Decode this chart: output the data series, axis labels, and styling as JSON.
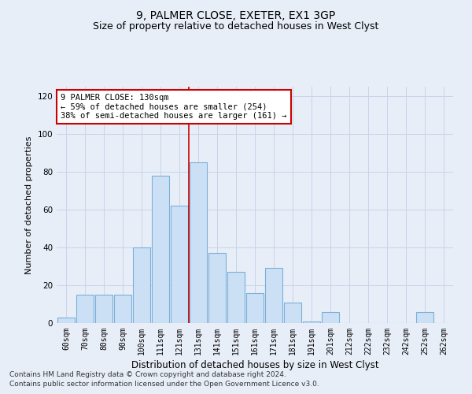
{
  "title": "9, PALMER CLOSE, EXETER, EX1 3GP",
  "subtitle": "Size of property relative to detached houses in West Clyst",
  "xlabel": "Distribution of detached houses by size in West Clyst",
  "ylabel": "Number of detached properties",
  "categories": [
    "60sqm",
    "70sqm",
    "80sqm",
    "90sqm",
    "100sqm",
    "111sqm",
    "121sqm",
    "131sqm",
    "141sqm",
    "151sqm",
    "161sqm",
    "171sqm",
    "181sqm",
    "191sqm",
    "201sqm",
    "212sqm",
    "222sqm",
    "232sqm",
    "242sqm",
    "252sqm",
    "262sqm"
  ],
  "values": [
    3,
    15,
    15,
    15,
    40,
    78,
    62,
    85,
    37,
    27,
    16,
    29,
    11,
    1,
    6,
    0,
    0,
    0,
    0,
    6,
    0
  ],
  "bar_color": "#cce0f5",
  "bar_edge_color": "#7ab0d8",
  "vline_index": 7,
  "vline_color": "#cc0000",
  "annotation_line1": "9 PALMER CLOSE: 130sqm",
  "annotation_line2": "← 59% of detached houses are smaller (254)",
  "annotation_line3": "38% of semi-detached houses are larger (161) →",
  "annotation_box_color": "#ffffff",
  "annotation_box_edge": "#cc0000",
  "ylim": [
    0,
    125
  ],
  "yticks": [
    0,
    20,
    40,
    60,
    80,
    100,
    120
  ],
  "grid_color": "#c8d4e8",
  "bg_color": "#e8eef8",
  "footer1": "Contains HM Land Registry data © Crown copyright and database right 2024.",
  "footer2": "Contains public sector information licensed under the Open Government Licence v3.0.",
  "title_fontsize": 10,
  "subtitle_fontsize": 9,
  "xlabel_fontsize": 8.5,
  "ylabel_fontsize": 8,
  "tick_fontsize": 7,
  "footer_fontsize": 6.5,
  "annotation_fontsize": 7.5
}
